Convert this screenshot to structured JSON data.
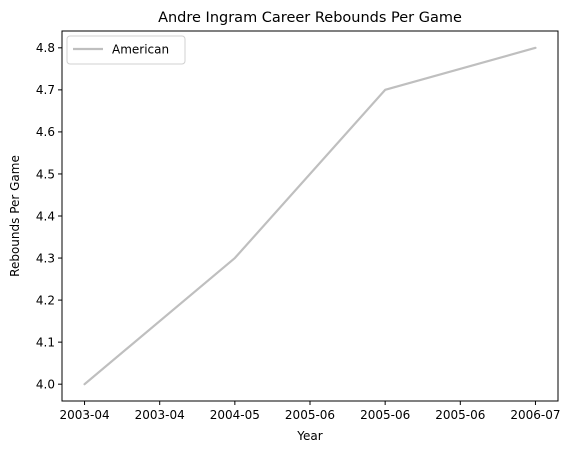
{
  "chart_data": {
    "type": "line",
    "title": "Andre Ingram Career Rebounds Per Game",
    "xlabel": "Year",
    "ylabel": "Rebounds Per Game",
    "x_tick_labels": [
      "2003-04",
      "2003-04",
      "2004-05",
      "2005-06",
      "2005-06",
      "2005-06",
      "2006-07"
    ],
    "y_tick_labels": [
      "4.0",
      "4.1",
      "4.2",
      "4.3",
      "4.4",
      "4.5",
      "4.6",
      "4.7",
      "4.8"
    ],
    "x_ticks": [
      0,
      0.5,
      1,
      1.5,
      2,
      2.5,
      3
    ],
    "y_ticks": [
      4.0,
      4.1,
      4.2,
      4.3,
      4.4,
      4.5,
      4.6,
      4.7,
      4.8
    ],
    "xlim": [
      -0.15,
      3.15
    ],
    "ylim": [
      3.96,
      4.84
    ],
    "categories": [
      "2003-04",
      "2004-05",
      "2005-06",
      "2006-07"
    ],
    "series": [
      {
        "name": "American",
        "values": [
          4.0,
          4.3,
          4.7,
          4.8
        ],
        "color": "#bfbfbf"
      }
    ],
    "grid": false,
    "legend_position": "top-left"
  }
}
